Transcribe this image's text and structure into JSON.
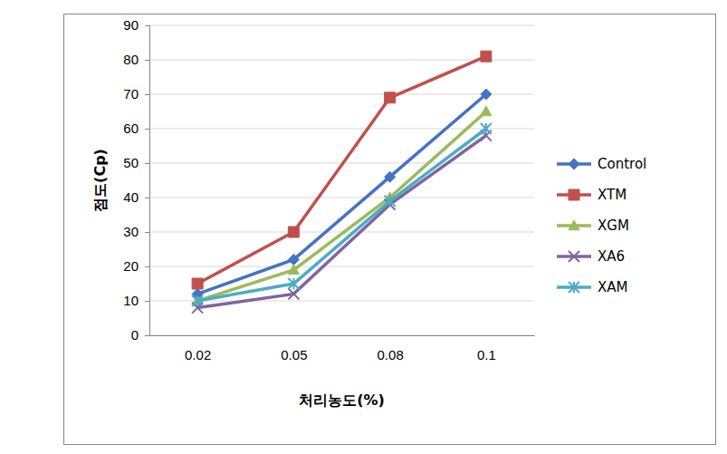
{
  "chart_data": {
    "type": "line",
    "x_label": "처리농도(%)",
    "y_label": "점도(Cp)",
    "categories": [
      "0.02",
      "0.05",
      "0.08",
      "0.1"
    ],
    "series": [
      {
        "name": "Control",
        "color": "#4472c4",
        "marker": "diamond",
        "values": [
          12,
          22,
          46,
          70
        ]
      },
      {
        "name": "XTM",
        "color": "#c0504d",
        "marker": "square",
        "values": [
          15,
          30,
          69,
          81
        ]
      },
      {
        "name": "XGM",
        "color": "#9bbb59",
        "marker": "triangle",
        "values": [
          10,
          19,
          40,
          65
        ]
      },
      {
        "name": "XA6",
        "color": "#8064a2",
        "marker": "x",
        "values": [
          8,
          12,
          38,
          58
        ]
      },
      {
        "name": "XAM",
        "color": "#4bacc6",
        "marker": "asterisk",
        "values": [
          10,
          15,
          39,
          60
        ]
      }
    ],
    "ylim": [
      0,
      90
    ],
    "yticks": [
      0,
      10,
      20,
      30,
      40,
      50,
      60,
      70,
      80,
      90
    ],
    "grid": true,
    "legend": "right"
  }
}
